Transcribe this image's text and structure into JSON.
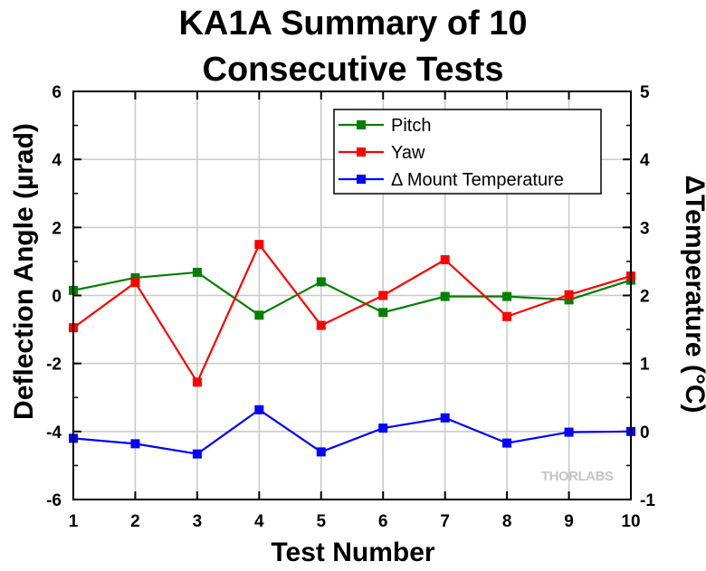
{
  "chart_data": {
    "type": "line",
    "title_lines": [
      "KA1A Summary of 10",
      "Consecutive Tests"
    ],
    "xlabel": "Test Number",
    "ylabel": "Deflection Angle (µrad)",
    "y2label": "ΔTemperature (°C)",
    "x": [
      1,
      2,
      3,
      4,
      5,
      6,
      7,
      8,
      9,
      10
    ],
    "xlim": [
      1,
      10
    ],
    "ylim": [
      -6,
      6
    ],
    "y2lim": [
      -1,
      5
    ],
    "xticks": [
      "1",
      "2",
      "3",
      "4",
      "5",
      "6",
      "7",
      "8",
      "9",
      "10"
    ],
    "yticks": [
      "-6",
      "-4",
      "-2",
      "0",
      "2",
      "4",
      "6"
    ],
    "y2ticks": [
      "-1",
      "0",
      "1",
      "2",
      "3",
      "4",
      "5"
    ],
    "grid": true,
    "legend_position": "top-right",
    "series": [
      {
        "name": "Pitch",
        "axis": "left",
        "color": "#008000",
        "values": [
          0.15,
          0.52,
          0.68,
          -0.58,
          0.4,
          -0.5,
          -0.03,
          -0.03,
          -0.13,
          0.45
        ]
      },
      {
        "name": "Yaw",
        "axis": "left",
        "color": "#ff0000",
        "values": [
          -0.95,
          0.38,
          -2.55,
          1.5,
          -0.88,
          0.0,
          1.05,
          -0.62,
          0.02,
          0.57
        ]
      },
      {
        "name": "Δ Mount Temperature",
        "axis": "right",
        "color": "#0000ff",
        "values": [
          -0.1,
          -0.18,
          -0.33,
          0.32,
          -0.3,
          0.05,
          0.2,
          -0.17,
          -0.01,
          0.0
        ]
      }
    ]
  },
  "watermark": {
    "text": "THORLABS"
  }
}
